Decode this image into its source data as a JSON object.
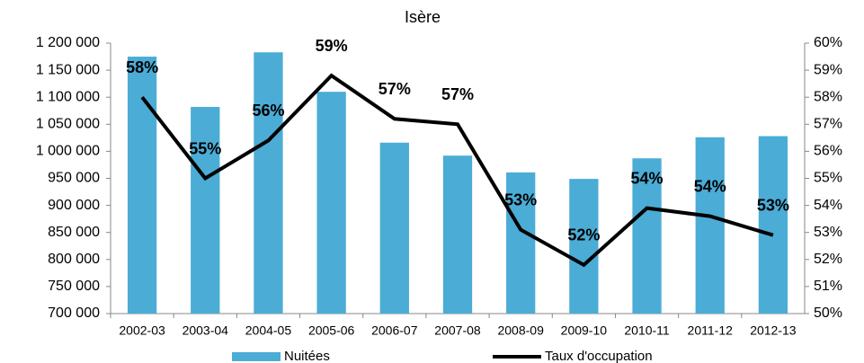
{
  "chart_data": {
    "type": "bar_line",
    "subtitle": "Isère",
    "categories": [
      "2002-03",
      "2003-04",
      "2004-05",
      "2005-06",
      "2006-07",
      "2007-08",
      "2008-09",
      "2009-10",
      "2010-11",
      "2011-12",
      "2012-13"
    ],
    "series": [
      {
        "name": "Nuitées",
        "color": "#4bacd6",
        "type": "bar",
        "values": [
          1175000,
          1082000,
          1183000,
          1110000,
          1016000,
          992000,
          961000,
          949000,
          987000,
          1026000,
          1028000
        ]
      },
      {
        "name": "Taux d'occupation",
        "color": "#000000",
        "type": "line",
        "axis": "y2",
        "values": [
          58.0,
          55.0,
          56.4,
          58.8,
          57.2,
          57.0,
          53.1,
          51.8,
          53.9,
          53.6,
          52.9
        ],
        "value_labels": [
          "58%",
          "55%",
          "56%",
          "59%",
          "57%",
          "57%",
          "53%",
          "52%",
          "54%",
          "54%",
          "53%"
        ]
      }
    ],
    "ylim": [
      700000,
      1200000
    ],
    "yticks": [
      {
        "value": 700000,
        "label": "700 000"
      },
      {
        "value": 750000,
        "label": "750 000"
      },
      {
        "value": 800000,
        "label": "800 000"
      },
      {
        "value": 850000,
        "label": "850 000"
      },
      {
        "value": 900000,
        "label": "900 000"
      },
      {
        "value": 950000,
        "label": "950 000"
      },
      {
        "value": 1000000,
        "label": "1 000 000"
      },
      {
        "value": 1050000,
        "label": "1 050 000"
      },
      {
        "value": 1100000,
        "label": "1 100 000"
      },
      {
        "value": 1150000,
        "label": "1 150 000"
      },
      {
        "value": 1200000,
        "label": "1 200 000"
      }
    ],
    "y2lim": [
      50,
      60
    ],
    "y2ticks": [
      {
        "value": 50,
        "label": "50%"
      },
      {
        "value": 51,
        "label": "51%"
      },
      {
        "value": 52,
        "label": "52%"
      },
      {
        "value": 53,
        "label": "53%"
      },
      {
        "value": 54,
        "label": "54%"
      },
      {
        "value": 55,
        "label": "55%"
      },
      {
        "value": 56,
        "label": "56%"
      },
      {
        "value": 57,
        "label": "57%"
      },
      {
        "value": 58,
        "label": "58%"
      },
      {
        "value": 59,
        "label": "59%"
      },
      {
        "value": 60,
        "label": "60%"
      }
    ],
    "legend": "bottom"
  }
}
